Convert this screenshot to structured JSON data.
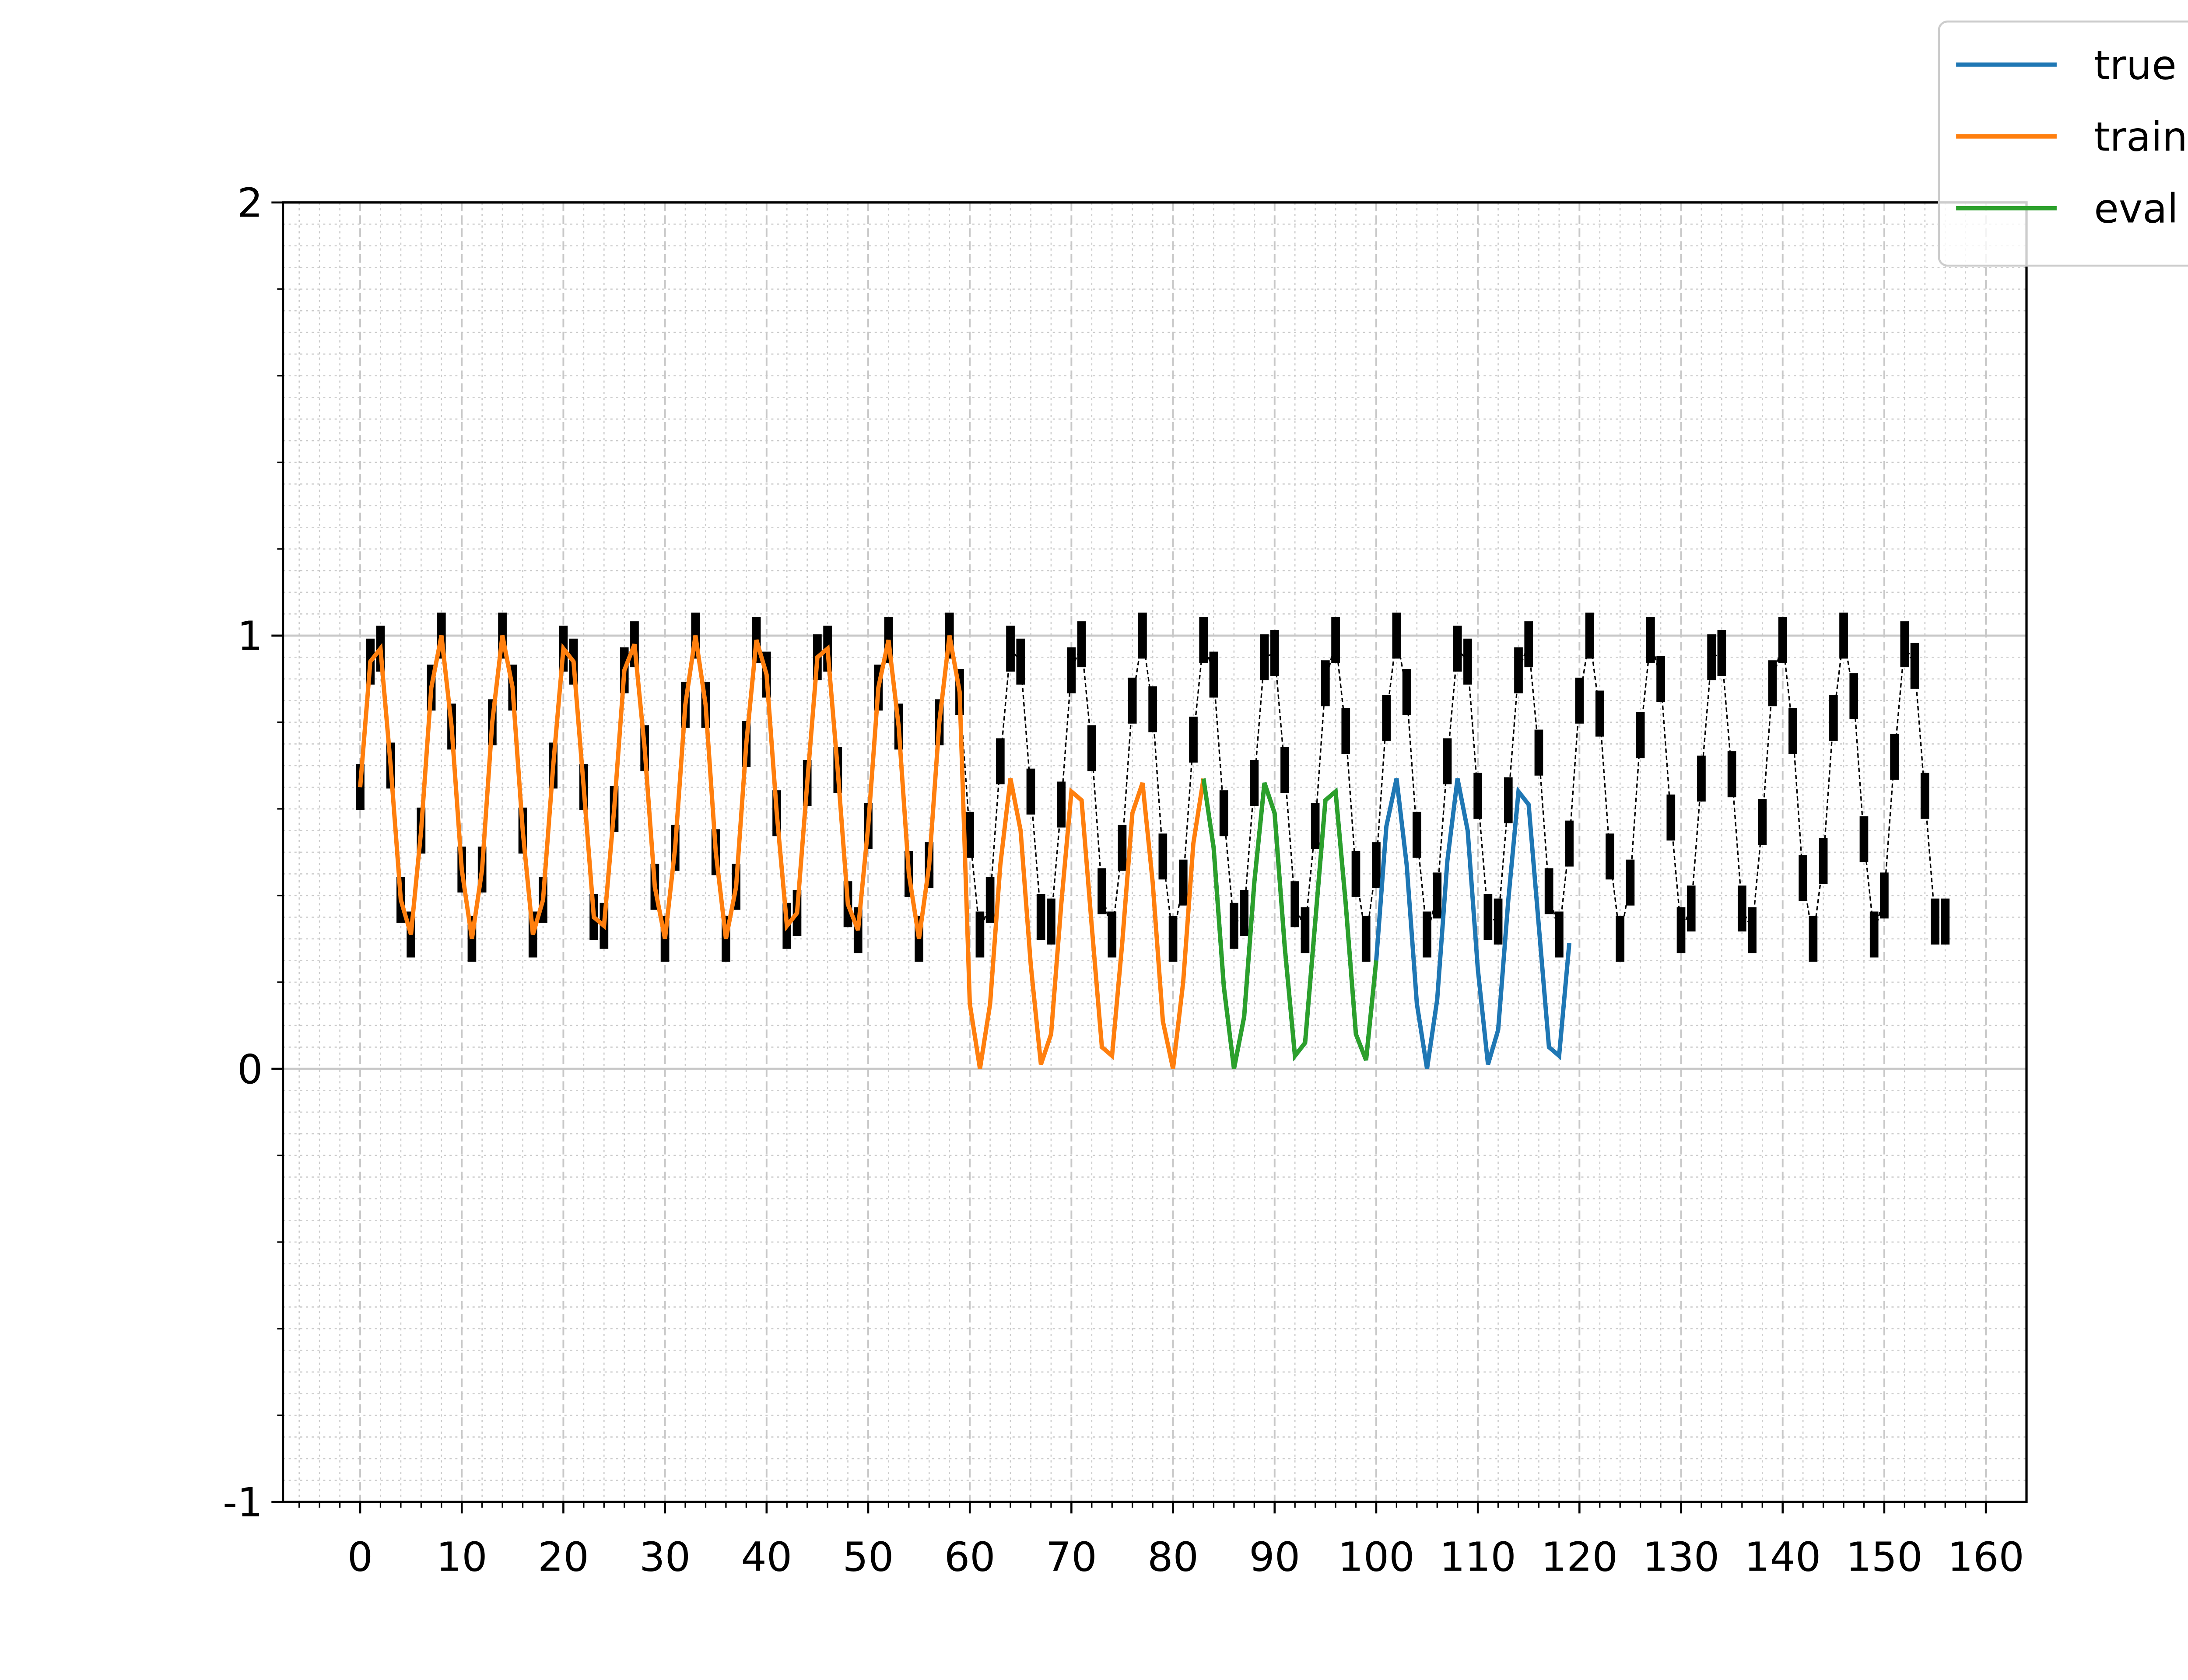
{
  "chart_data": {
    "type": "line",
    "xlim": [
      -7.6,
      164
    ],
    "ylim": [
      -1,
      2
    ],
    "xticks": [
      0,
      10,
      20,
      30,
      40,
      50,
      60,
      70,
      80,
      90,
      100,
      110,
      120,
      130,
      140,
      150,
      160
    ],
    "yticks": [
      -1,
      0,
      1,
      2
    ],
    "grid": true,
    "minor_grid": true,
    "legend": "upper right",
    "series": [
      {
        "name": "true",
        "color": "#1f77b4",
        "x": [
          83,
          84,
          85,
          86,
          87,
          88,
          89,
          90,
          91,
          92,
          93,
          94,
          95,
          96,
          97,
          98,
          99,
          100,
          101,
          102,
          103,
          104,
          105,
          106,
          107,
          108,
          109,
          110,
          111,
          112,
          113,
          114,
          115,
          116,
          117,
          118,
          119
        ],
        "values": [
          0.67,
          0.51,
          0.19,
          0.0,
          0.12,
          0.43,
          0.66,
          0.59,
          0.28,
          0.03,
          0.06,
          0.34,
          0.62,
          0.64,
          0.38,
          0.08,
          0.02,
          0.25,
          0.56,
          0.67,
          0.47,
          0.15,
          0.0,
          0.16,
          0.48,
          0.67,
          0.55,
          0.23,
          0.01,
          0.09,
          0.39,
          0.64,
          0.61,
          0.33,
          0.05,
          0.03,
          0.29
        ]
      },
      {
        "name": "train",
        "color": "#ff7f0e",
        "x": [
          0,
          1,
          2,
          3,
          4,
          5,
          6,
          7,
          8,
          9,
          10,
          11,
          12,
          13,
          14,
          15,
          16,
          17,
          18,
          19,
          20,
          21,
          22,
          23,
          24,
          25,
          26,
          27,
          28,
          29,
          30,
          31,
          32,
          33,
          34,
          35,
          36,
          37,
          38,
          39,
          40,
          41,
          42,
          43,
          44,
          45,
          46,
          47,
          48,
          49,
          50,
          51,
          52,
          53,
          54,
          55,
          56,
          57,
          58,
          59,
          60,
          61,
          62,
          63,
          64,
          65,
          66,
          67,
          68,
          69,
          70,
          71,
          72,
          73,
          74,
          75,
          76,
          77,
          78,
          79,
          80,
          81,
          82,
          83
        ],
        "values": [
          0.65,
          0.94,
          0.97,
          0.7,
          0.39,
          0.31,
          0.55,
          0.88,
          1.0,
          0.79,
          0.46,
          0.3,
          0.46,
          0.8,
          1.0,
          0.88,
          0.55,
          0.31,
          0.39,
          0.7,
          0.97,
          0.94,
          0.65,
          0.35,
          0.33,
          0.6,
          0.92,
          0.98,
          0.74,
          0.42,
          0.3,
          0.51,
          0.84,
          1.0,
          0.84,
          0.5,
          0.3,
          0.42,
          0.75,
          0.99,
          0.91,
          0.59,
          0.33,
          0.36,
          0.66,
          0.95,
          0.97,
          0.69,
          0.38,
          0.32,
          0.56,
          0.88,
          0.99,
          0.79,
          0.45,
          0.3,
          0.47,
          0.8,
          1.0,
          0.87,
          0.15,
          0.0,
          0.15,
          0.47,
          0.67,
          0.55,
          0.24,
          0.01,
          0.08,
          0.38,
          0.64,
          0.62,
          0.33,
          0.05,
          0.03,
          0.29,
          0.59,
          0.66,
          0.43,
          0.11,
          0.0,
          0.2,
          0.52,
          0.67
        ]
      },
      {
        "name": "eval",
        "color": "#2ca02c",
        "x": [
          83,
          84,
          85,
          86,
          87,
          88,
          89,
          90,
          91,
          92,
          93,
          94,
          95,
          96,
          97,
          98,
          99,
          100
        ],
        "values": [
          0.67,
          0.51,
          0.19,
          0.0,
          0.12,
          0.43,
          0.66,
          0.59,
          0.28,
          0.03,
          0.06,
          0.34,
          0.62,
          0.64,
          0.38,
          0.08,
          0.02,
          0.25
        ]
      },
      {
        "color": "#000000",
        "style": "dashed",
        "marker": "|",
        "x": [
          0,
          1,
          2,
          3,
          4,
          5,
          6,
          7,
          8,
          9,
          10,
          11,
          12,
          13,
          14,
          15,
          16,
          17,
          18,
          19,
          20,
          21,
          22,
          23,
          24,
          25,
          26,
          27,
          28,
          29,
          30,
          31,
          32,
          33,
          34,
          35,
          36,
          37,
          38,
          39,
          40,
          41,
          42,
          43,
          44,
          45,
          46,
          47,
          48,
          49,
          50,
          51,
          52,
          53,
          54,
          55,
          56,
          57,
          58,
          59,
          60,
          61,
          62,
          63,
          64,
          65,
          66,
          67,
          68,
          69,
          70,
          71,
          72,
          73,
          74,
          75,
          76,
          77,
          78,
          79,
          80,
          81,
          82,
          83,
          84,
          85,
          86,
          87,
          88,
          89,
          90,
          91,
          92,
          93,
          94,
          95,
          96,
          97,
          98,
          99,
          100,
          101,
          102,
          103,
          104,
          105,
          106,
          107,
          108,
          109,
          110,
          111,
          112,
          113,
          114,
          115,
          116,
          117,
          118,
          119,
          120,
          121,
          122,
          123,
          124,
          125,
          126,
          127,
          128,
          129,
          130,
          131,
          132,
          133,
          134,
          135,
          136,
          137,
          138,
          139,
          140,
          141,
          142,
          143,
          144,
          145,
          146,
          147,
          148,
          149,
          150,
          151,
          152,
          153,
          154,
          155,
          156
        ],
        "values": [
          0.65,
          0.94,
          0.97,
          0.7,
          0.39,
          0.31,
          0.55,
          0.88,
          1.0,
          0.79,
          0.46,
          0.3,
          0.46,
          0.8,
          1.0,
          0.88,
          0.55,
          0.31,
          0.39,
          0.7,
          0.97,
          0.94,
          0.65,
          0.35,
          0.33,
          0.6,
          0.92,
          0.98,
          0.74,
          0.42,
          0.3,
          0.51,
          0.84,
          1.0,
          0.84,
          0.5,
          0.3,
          0.42,
          0.75,
          0.99,
          0.91,
          0.59,
          0.33,
          0.36,
          0.66,
          0.95,
          0.97,
          0.69,
          0.38,
          0.32,
          0.56,
          0.88,
          0.99,
          0.79,
          0.45,
          0.3,
          0.47,
          0.8,
          1.0,
          0.87,
          0.54,
          0.31,
          0.39,
          0.71,
          0.97,
          0.94,
          0.64,
          0.35,
          0.34,
          0.61,
          0.92,
          0.98,
          0.74,
          0.41,
          0.31,
          0.51,
          0.85,
          1.0,
          0.83,
          0.49,
          0.3,
          0.43,
          0.76,
          0.99,
          0.91,
          0.59,
          0.33,
          0.36,
          0.66,
          0.95,
          0.96,
          0.69,
          0.38,
          0.32,
          0.56,
          0.89,
          0.99,
          0.78,
          0.45,
          0.3,
          0.47,
          0.81,
          1.0,
          0.87,
          0.54,
          0.31,
          0.4,
          0.71,
          0.97,
          0.94,
          0.63,
          0.35,
          0.34,
          0.62,
          0.92,
          0.98,
          0.73,
          0.41,
          0.31,
          0.52,
          0.85,
          1.0,
          0.82,
          0.49,
          0.3,
          0.43,
          0.77,
          0.99,
          0.9,
          0.58,
          0.32,
          0.37,
          0.67,
          0.95,
          0.96,
          0.68,
          0.37,
          0.32,
          0.57,
          0.89,
          0.99,
          0.78,
          0.44,
          0.3,
          0.48,
          0.81,
          1.0,
          0.86,
          0.53,
          0.31,
          0.4,
          0.72,
          0.98,
          0.93,
          0.63,
          0.34,
          0.34
        ]
      }
    ]
  }
}
